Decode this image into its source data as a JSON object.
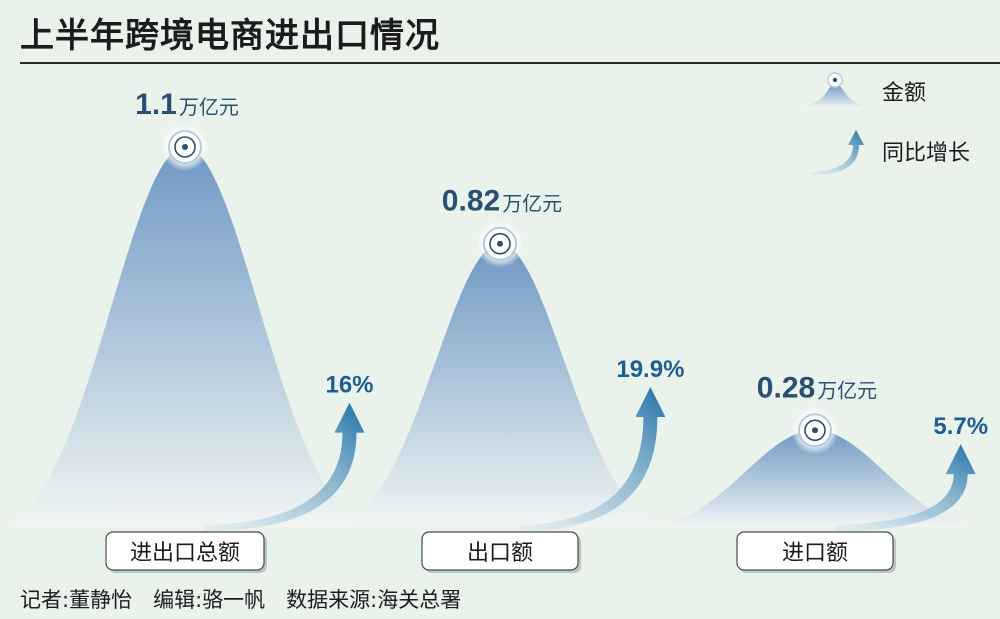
{
  "title": "上半年跨境电商进出口情况",
  "footer": "记者:董静怡　编辑:骆一帆　数据来源:海关总署",
  "legend": {
    "amount_label": "金额",
    "growth_label": "同比增长"
  },
  "colors": {
    "mountain_top": "#6f98c4",
    "mountain_bottom": "#f0f5f3",
    "arrow_dark": "#1f6fa6",
    "arrow_light": "#b9d6e8",
    "value_text": "#2a4f72",
    "growth_text": "#1f5e94",
    "background": "#eaf2ec"
  },
  "chart_data": {
    "type": "area",
    "title": "上半年跨境电商进出口情况",
    "unit": "万亿元",
    "categories": [
      "进出口总额",
      "出口额",
      "进口额"
    ],
    "series": [
      {
        "name": "金额",
        "values": [
          1.1,
          0.82,
          0.28
        ],
        "labels": [
          "1.1",
          "0.82",
          "0.28"
        ]
      },
      {
        "name": "同比增长",
        "values": [
          16,
          19.9,
          5.7
        ],
        "labels": [
          "16%",
          "19.9%",
          "5.7%"
        ]
      }
    ],
    "legend_position": "top-right"
  }
}
